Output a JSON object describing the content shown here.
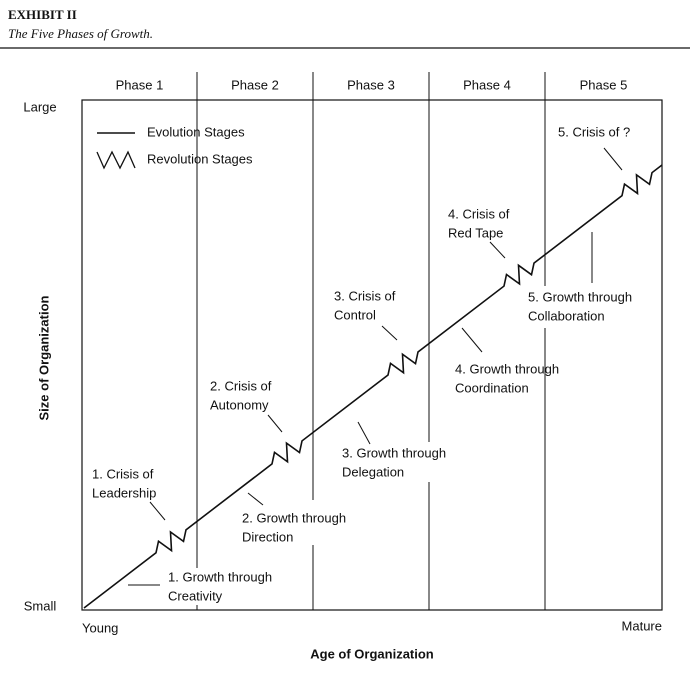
{
  "header": {
    "title": "EXHIBIT II",
    "subtitle": "The Five Phases of Growth."
  },
  "phases": [
    "Phase 1",
    "Phase 2",
    "Phase 3",
    "Phase 4",
    "Phase 5"
  ],
  "legend": {
    "evolution": "Evolution Stages",
    "revolution": "Revolution Stages"
  },
  "y_axis": {
    "title": "Size of Organization",
    "top": "Large",
    "bottom": "Small"
  },
  "x_axis": {
    "title": "Age of Organization",
    "left": "Young",
    "right": "Mature"
  },
  "crises": [
    [
      "1. Crisis of",
      "Leadership"
    ],
    [
      "2. Crisis of",
      "Autonomy"
    ],
    [
      "3. Crisis of",
      "Control"
    ],
    [
      "4. Crisis of",
      "Red Tape"
    ],
    [
      "5. Crisis of ?"
    ]
  ],
  "growth": [
    [
      "1. Growth through",
      "Creativity"
    ],
    [
      "2. Growth through",
      "Direction"
    ],
    [
      "3. Growth through",
      "Delegation"
    ],
    [
      "4. Growth through",
      "Coordination"
    ],
    [
      "5. Growth through",
      "Collaboration"
    ]
  ]
}
